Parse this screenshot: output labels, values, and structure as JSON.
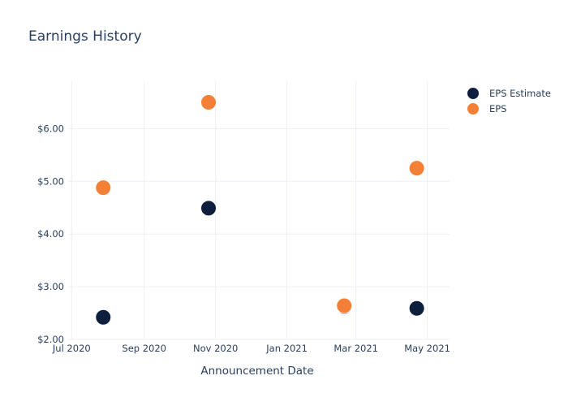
{
  "chart_data": {
    "type": "scatter",
    "title": "Earnings History",
    "xlabel": "Announcement Date",
    "ylabel": "",
    "x_axis_type": "date",
    "xlim": [
      "2020-06-28",
      "2021-05-20"
    ],
    "ylim": [
      2.0,
      6.9
    ],
    "x_ticks": [
      {
        "date": "2020-07-01",
        "label": "Jul 2020"
      },
      {
        "date": "2020-09-01",
        "label": "Sep 2020"
      },
      {
        "date": "2020-11-01",
        "label": "Nov 2020"
      },
      {
        "date": "2021-01-01",
        "label": "Jan 2021"
      },
      {
        "date": "2021-03-01",
        "label": "Mar 2021"
      },
      {
        "date": "2021-05-01",
        "label": "May 2021"
      }
    ],
    "y_ticks": [
      {
        "value": 2.0,
        "label": "$2.00"
      },
      {
        "value": 3.0,
        "label": "$3.00"
      },
      {
        "value": 4.0,
        "label": "$4.00"
      },
      {
        "value": 5.0,
        "label": "$5.00"
      },
      {
        "value": 6.0,
        "label": "$6.00"
      }
    ],
    "grid": true,
    "legend_position": "top-right",
    "series": [
      {
        "name": "EPS Estimate",
        "color": "#0d1f3c",
        "points": [
          {
            "x": "2020-07-28",
            "y": 2.42
          },
          {
            "x": "2020-10-26",
            "y": 4.49
          },
          {
            "x": "2021-02-19",
            "y": 2.62
          },
          {
            "x": "2021-04-22",
            "y": 2.59
          }
        ]
      },
      {
        "name": "EPS",
        "color": "#f47f36",
        "points": [
          {
            "x": "2020-07-28",
            "y": 4.88
          },
          {
            "x": "2020-10-26",
            "y": 6.5
          },
          {
            "x": "2021-02-19",
            "y": 2.64
          },
          {
            "x": "2021-04-22",
            "y": 5.25
          }
        ]
      }
    ]
  }
}
